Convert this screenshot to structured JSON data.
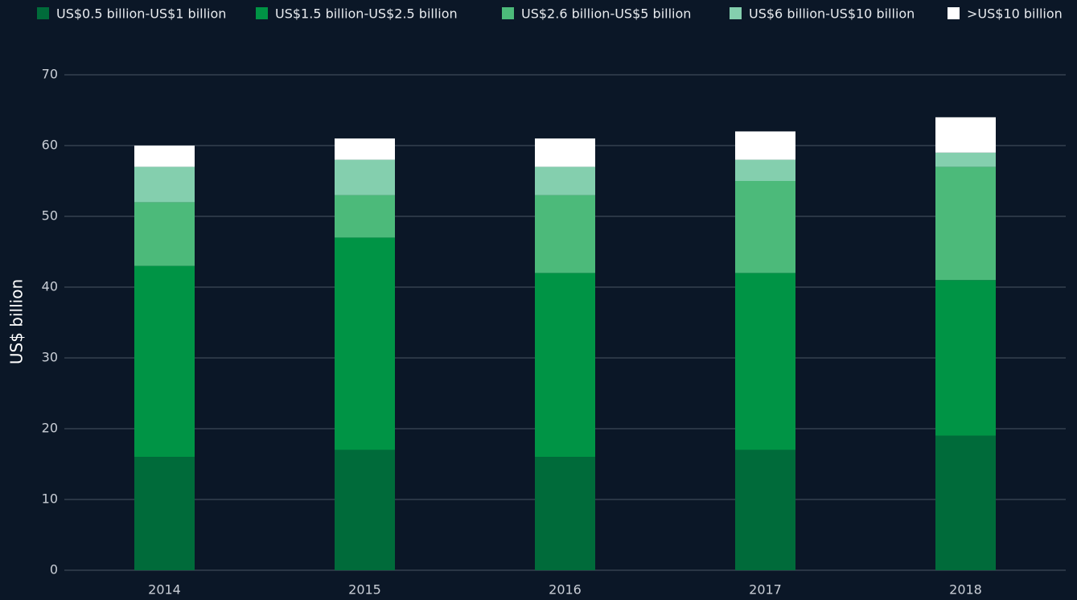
{
  "chart_data": {
    "type": "stacked_bar",
    "y_label": "US$ billion",
    "categories": [
      "2014",
      "2015",
      "2016",
      "2017",
      "2018"
    ],
    "series": [
      {
        "name": "US$0.5 billion-US$1 billion",
        "color": "#006b3a",
        "values": [
          16,
          17,
          16,
          17,
          19
        ]
      },
      {
        "name": "US$1.5 billion-US$2.5 billion",
        "color": "#009445",
        "values": [
          27,
          30,
          26,
          25,
          22
        ]
      },
      {
        "name": "US$2.6 billion-US$5 billion",
        "color": "#4cba7a",
        "values": [
          9,
          6,
          11,
          13,
          16
        ]
      },
      {
        "name": "US$6 billion-US$10 billion",
        "color": "#84cfae",
        "values": [
          5,
          5,
          4,
          3,
          2
        ]
      },
      {
        "name": ">US$10 billion",
        "color": "#ffffff",
        "values": [
          3,
          3,
          4,
          4,
          5
        ]
      }
    ],
    "ylim": [
      0,
      70
    ],
    "yticks": [
      0,
      10,
      20,
      30,
      40,
      50,
      60,
      70
    ],
    "grid": true
  }
}
